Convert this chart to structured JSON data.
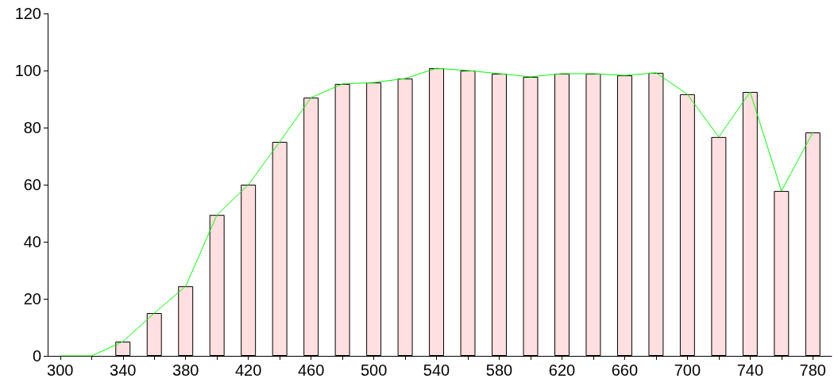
{
  "chart_data": {
    "type": "bar",
    "xlim": [
      292,
      792
    ],
    "ylim": [
      0,
      120
    ],
    "xticks": [
      300,
      {
        "value": 320,
        "label": null
      },
      340,
      {
        "value": 360,
        "label": null
      },
      380,
      {
        "value": 400,
        "label": null
      },
      420,
      {
        "value": 440,
        "label": null
      },
      460,
      {
        "value": 480,
        "label": null
      },
      500,
      {
        "value": 520,
        "label": null
      },
      540,
      {
        "value": 560,
        "label": null
      },
      580,
      {
        "value": 600,
        "label": null
      },
      620,
      {
        "value": 640,
        "label": null
      },
      660,
      {
        "value": 680,
        "label": null
      },
      700,
      {
        "value": 720,
        "label": null
      },
      740,
      {
        "value": 760,
        "label": null
      },
      780
    ],
    "yticks": [
      0,
      20,
      40,
      60,
      80,
      100,
      120
    ],
    "grid": false,
    "series": [
      {
        "color": "#ffdfdf",
        "x": [
          340,
          360,
          380,
          400,
          420,
          440,
          460,
          480,
          500,
          520,
          540,
          560,
          580,
          600,
          620,
          640,
          660,
          680,
          700,
          720,
          740,
          760,
          780
        ],
        "values": [
          5,
          15,
          24.4,
          49.4,
          60,
          75,
          90.5,
          95.3,
          95.8,
          97.2,
          100.8,
          100,
          98.9,
          97.8,
          98.9,
          98.9,
          98.3,
          99.2,
          91.7,
          76.7,
          92.5,
          57.8,
          78.3
        ]
      },
      {
        "type": "line",
        "color": "#00ff00",
        "marker": "none",
        "line_style": "solid",
        "x": [
          300,
          320,
          340,
          360,
          380,
          400,
          420,
          440,
          460,
          480,
          500,
          520,
          540,
          560,
          580,
          600,
          620,
          640,
          660,
          680,
          700,
          720,
          740,
          760,
          780
        ],
        "values": [
          0,
          0,
          5,
          15,
          24.4,
          49.4,
          60,
          75,
          90.5,
          95.3,
          95.8,
          97.2,
          100.8,
          100,
          98.9,
          97.8,
          98.9,
          98.9,
          98.3,
          99.2,
          91.7,
          76.7,
          92.5,
          57.8,
          78.3
        ]
      }
    ]
  }
}
